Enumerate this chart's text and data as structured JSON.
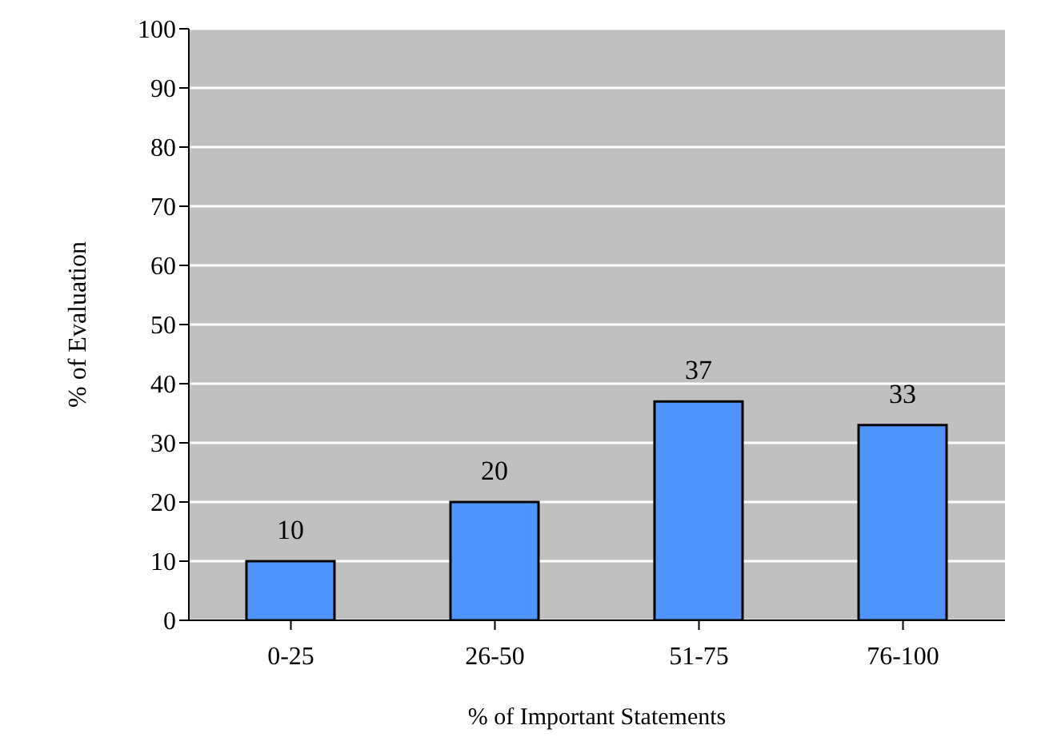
{
  "chart_data": {
    "type": "bar",
    "xlabel": "% of Important Statements",
    "ylabel": "% of Evaluation",
    "categories": [
      "0-25",
      "26-50",
      "51-75",
      "76-100"
    ],
    "values": [
      10,
      20,
      37,
      33
    ],
    "color": "#4f94ff",
    "ylim": [
      0,
      100
    ],
    "yticks": [
      0,
      10,
      20,
      30,
      40,
      50,
      60,
      70,
      80,
      90,
      100
    ],
    "grid": "y",
    "data_labels": true
  }
}
